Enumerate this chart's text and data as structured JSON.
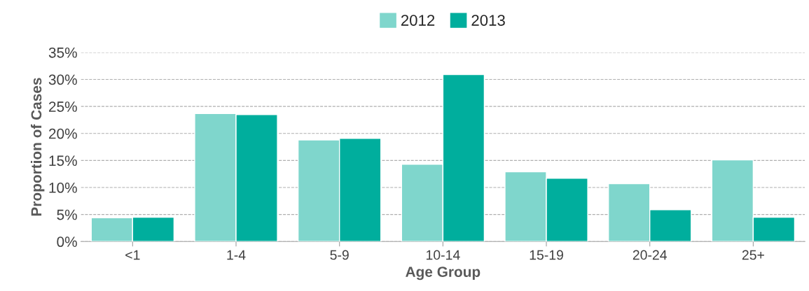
{
  "chart_data": {
    "type": "bar",
    "xlabel": "Age Group",
    "ylabel": "Proportion of Cases",
    "categories": [
      "<1",
      "1-4",
      "5-9",
      "10-14",
      "15-19",
      "20-24",
      "25+"
    ],
    "series": [
      {
        "name": "2012",
        "color": "#7fd6cc",
        "values": [
          4.4,
          23.7,
          18.8,
          14.3,
          12.9,
          10.7,
          15.1
        ]
      },
      {
        "name": "2013",
        "color": "#00ae9d",
        "values": [
          4.5,
          23.5,
          19.1,
          30.9,
          11.7,
          5.9,
          4.5
        ]
      }
    ],
    "ylim": [
      0,
      35
    ],
    "yticks": [
      {
        "value": 0,
        "label": "0%"
      },
      {
        "value": 5,
        "label": "5%"
      },
      {
        "value": 10,
        "label": "10%"
      },
      {
        "value": 15,
        "label": "15%"
      },
      {
        "value": 20,
        "label": "20%"
      },
      {
        "value": 25,
        "label": "25%"
      },
      {
        "value": 30,
        "label": "30%"
      },
      {
        "value": 35,
        "label": "35%"
      }
    ],
    "grid": "y",
    "legend": "top"
  }
}
